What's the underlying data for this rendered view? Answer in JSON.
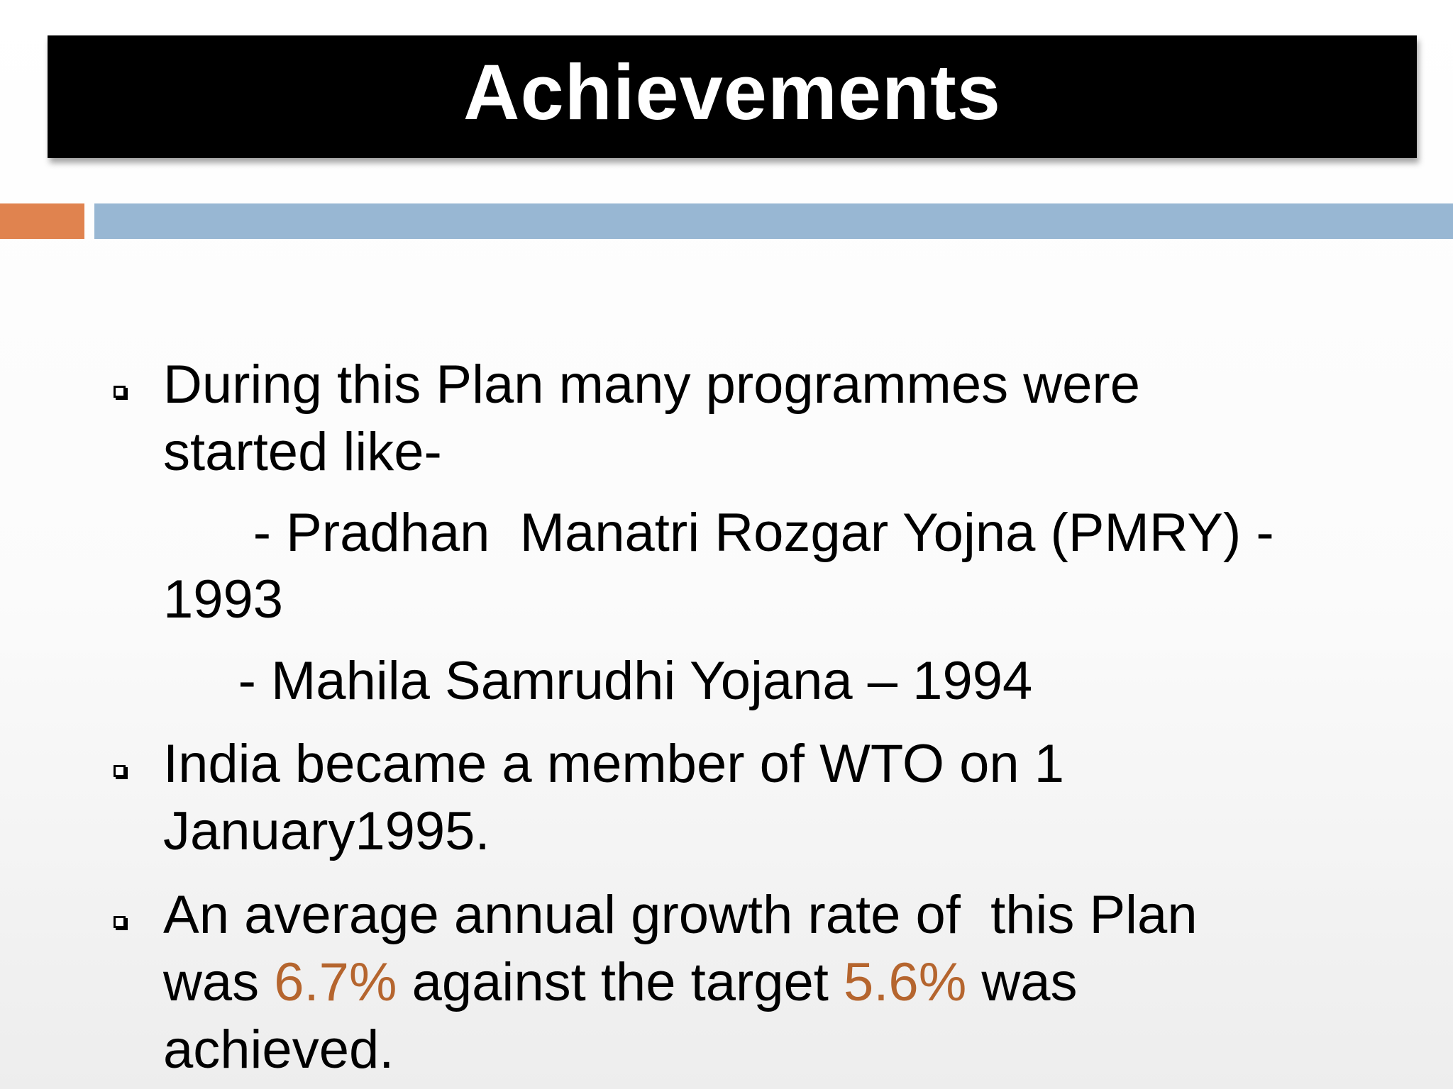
{
  "slide": {
    "title": "Achievements",
    "accent_colors": {
      "orange": "#e0834f",
      "blue": "#98b7d3",
      "highlight": "#b5652e"
    }
  },
  "bullets": [
    {
      "icon": "square-bullet-icon",
      "lines": [
        "During this Plan many programmes were",
        "started like-"
      ]
    },
    {
      "icon": "none",
      "lines": [
        "      - Pradhan  Manatri Rozgar Yojna (PMRY) -",
        "1993"
      ]
    },
    {
      "icon": "none",
      "lines": [
        "     - Mahila Samrudhi Yojana – 1994"
      ]
    },
    {
      "icon": "square-bullet-icon",
      "lines": [
        "India became a member of WTO on 1",
        "January1995."
      ]
    },
    {
      "icon": "square-bullet-icon",
      "line1": "An average annual growth rate of  this Plan",
      "line2_parts": {
        "prefix": "was ",
        "actual": "6.7%",
        "middle": " against the target ",
        "target": "5.6%",
        "suffix": " was"
      },
      "line3": "achieved."
    }
  ]
}
